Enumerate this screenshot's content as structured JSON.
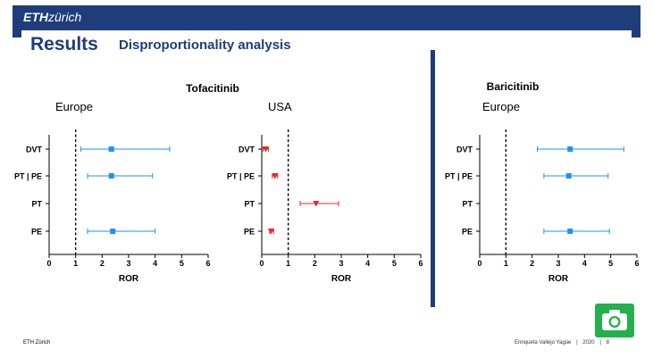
{
  "header": {
    "logo_bold": "ETH",
    "logo_light": "zürich",
    "title": "Results",
    "subtitle": "Disproportionality analysis"
  },
  "drug_titles": {
    "tofacitinib": "Tofacitinib",
    "baricitinib": "Baricitinib"
  },
  "footer": {
    "left": "ETH Zürich",
    "author": "Enriqueta Vallejo Yagüe",
    "sep1": "|",
    "year": "2020",
    "sep2": "|",
    "page": "8"
  },
  "colors": {
    "eth_blue": "#1f3d7a",
    "europe_series": "#1e90ff",
    "usa_series": "#e8282d",
    "camera_green": "#22b14c"
  },
  "chart_data": [
    {
      "type": "scatter",
      "subtype": "forest_plot",
      "title": "Europe",
      "drug": "Tofacitinib",
      "categories": [
        "DVT",
        "PT | PE",
        "PT",
        "PE"
      ],
      "estimate": [
        2.35,
        2.35,
        null,
        2.4
      ],
      "ci_low": [
        1.2,
        1.45,
        null,
        1.45
      ],
      "ci_high": [
        4.55,
        3.9,
        null,
        4.0
      ],
      "marker": "square",
      "color": "#1e90ff",
      "xlabel": "ROR",
      "xlim": [
        0,
        6
      ],
      "xticks": [
        0,
        1,
        2,
        3,
        4,
        5,
        6
      ],
      "reference_line": 1
    },
    {
      "type": "scatter",
      "subtype": "forest_plot",
      "title": "USA",
      "drug": "Tofacitinib",
      "categories": [
        "DVT",
        "PT | PE",
        "PT",
        "PE"
      ],
      "estimate": [
        0.15,
        0.5,
        2.05,
        0.35
      ],
      "ci_low": [
        0.05,
        0.4,
        1.45,
        0.3
      ],
      "ci_high": [
        0.25,
        0.6,
        2.9,
        0.45
      ],
      "marker": "triangle-down",
      "color": "#e8282d",
      "xlabel": "ROR",
      "xlim": [
        0,
        6
      ],
      "xticks": [
        0,
        1,
        2,
        3,
        4,
        5,
        6
      ],
      "reference_line": 1
    },
    {
      "type": "scatter",
      "subtype": "forest_plot",
      "title": "Europe",
      "drug": "Baricitinib",
      "categories": [
        "DVT",
        "PT | PE",
        "PT",
        "PE"
      ],
      "estimate": [
        3.45,
        3.4,
        null,
        3.45
      ],
      "ci_low": [
        2.2,
        2.45,
        null,
        2.45
      ],
      "ci_high": [
        5.5,
        4.9,
        null,
        4.95
      ],
      "marker": "square",
      "color": "#1e90ff",
      "xlabel": "ROR",
      "xlim": [
        0,
        6
      ],
      "xticks": [
        0,
        1,
        2,
        3,
        4,
        5,
        6
      ],
      "reference_line": 1
    }
  ]
}
